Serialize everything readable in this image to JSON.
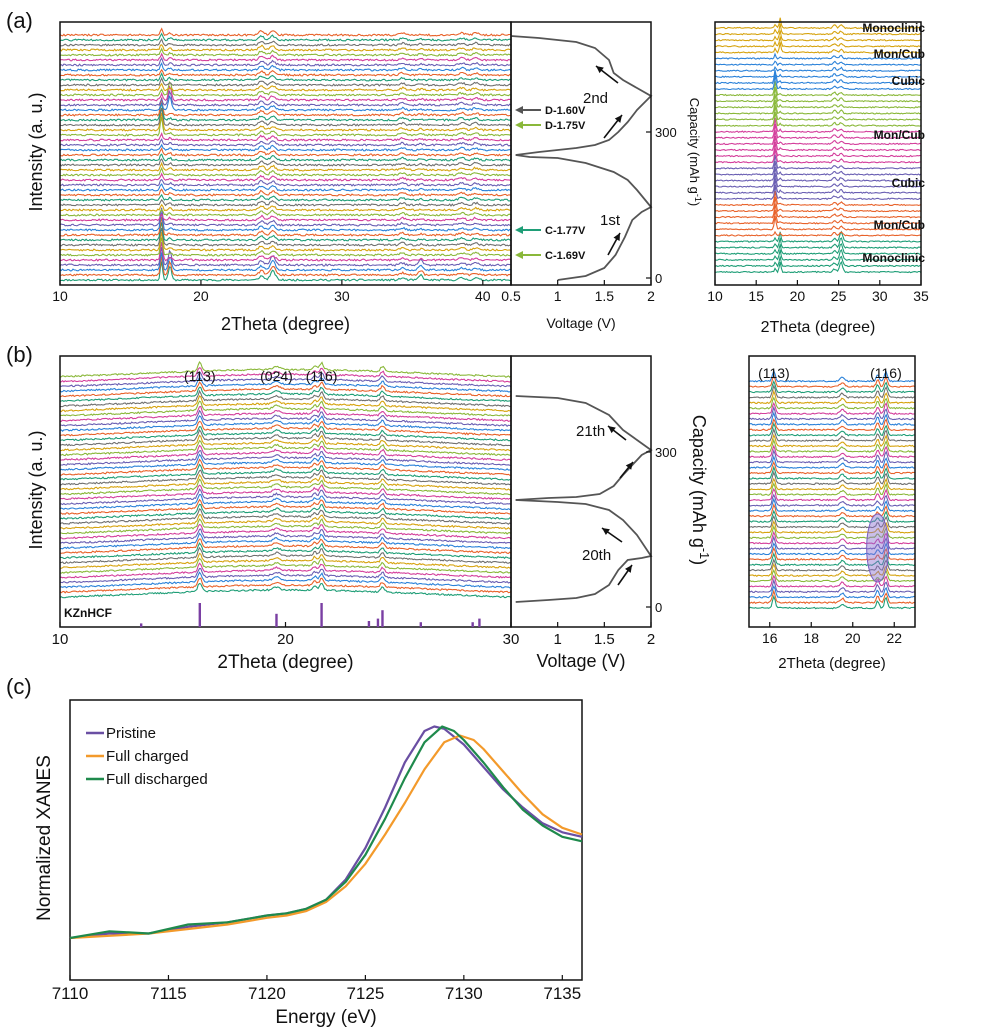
{
  "colors": {
    "pattern": [
      "#1f9e77",
      "#e8622a",
      "#2b82d9",
      "#6a5fb3",
      "#d43f9c",
      "#8ab83a",
      "#d6a30f",
      "#707070"
    ],
    "pristine": "#6a4fa3",
    "charged": "#f39a2b",
    "discharged": "#1f8a4c",
    "gcd": "#555555",
    "ref": "#7a3fa3"
  },
  "panels": {
    "a": {
      "label": "(a)"
    },
    "b": {
      "label": "(b)"
    },
    "c": {
      "label": "(c)"
    }
  },
  "chart_data": [
    {
      "id": "a-xrd",
      "type": "line",
      "ylabel": "Intensity (a. u.)",
      "xlabel": "2Theta (degree)",
      "xlim": [
        10,
        42
      ],
      "xticks": [
        10,
        20,
        30,
        40
      ],
      "traces": 50,
      "peaks_2theta": [
        17.2,
        17.8,
        24.3,
        25.1,
        34.3,
        35.6,
        38.5,
        39.5
      ],
      "annotations": [
        {
          "text": "D-1.60V",
          "trace": 34,
          "color": "#555555"
        },
        {
          "text": "D-1.75V",
          "trace": 31,
          "color": "#8ab83a"
        },
        {
          "text": "C-1.77V",
          "trace": 10,
          "color": "#1f9e77"
        },
        {
          "text": "C-1.69V",
          "trace": 5,
          "color": "#8ab83a"
        }
      ]
    },
    {
      "id": "a-gcd",
      "type": "line",
      "xlabel": "Voltage (V)",
      "ylabel": "Capacity (mAh g-1)",
      "xlim": [
        0.5,
        2.0
      ],
      "xticks": [
        0.5,
        1.0,
        1.5,
        2.0
      ],
      "yticks": [
        0,
        300
      ],
      "cycles": [
        {
          "label": "1st"
        },
        {
          "label": "2nd"
        }
      ]
    },
    {
      "id": "a-xrd-zoom",
      "type": "line",
      "ylabel": "Capacity (mAh g-1)",
      "xlabel": "2Theta (degree)",
      "xlim": [
        10,
        35
      ],
      "xticks": [
        10,
        15,
        20,
        25,
        30,
        35
      ],
      "phase_labels": [
        "Monoclinic",
        "Mon/Cub",
        "Cubic",
        "Mon/Cub",
        "Cubic",
        "Mon/Cub",
        "Monoclinic"
      ],
      "color_groups_bottom_to_top": [
        "#1f9e77",
        "#e8622a",
        "#6a5fb3",
        "#d43f9c",
        "#8ab83a",
        "#2b82d9",
        "#d6a30f"
      ]
    },
    {
      "id": "b-xrd",
      "type": "line",
      "ylabel": "Intensity (a. u.)",
      "xlabel": "2Theta (degree)",
      "xlim": [
        10,
        30
      ],
      "xticks": [
        10,
        20,
        30
      ],
      "traces": 46,
      "peaks": [
        {
          "label": "(113)",
          "two_theta": 16.2
        },
        {
          "label": "(024)",
          "two_theta": 19.6
        },
        {
          "label": "(116)",
          "two_theta": 21.6
        }
      ],
      "other_peaks_2theta": [
        24.3
      ],
      "reference": {
        "label": "KZnHCF",
        "sticks": [
          {
            "x": 13.6,
            "h": 0.15
          },
          {
            "x": 16.2,
            "h": 1.0
          },
          {
            "x": 19.6,
            "h": 0.55
          },
          {
            "x": 21.6,
            "h": 1.0
          },
          {
            "x": 23.7,
            "h": 0.25
          },
          {
            "x": 24.1,
            "h": 0.35
          },
          {
            "x": 24.3,
            "h": 0.7
          },
          {
            "x": 26.0,
            "h": 0.2
          },
          {
            "x": 28.3,
            "h": 0.2
          },
          {
            "x": 28.6,
            "h": 0.35
          }
        ]
      }
    },
    {
      "id": "b-gcd",
      "type": "line",
      "xlabel": "Voltage (V)",
      "ylabel": "Capacity (mAh g-1)",
      "xlim": [
        0.5,
        2.0
      ],
      "xticks": [
        1.0,
        1.5,
        2.0
      ],
      "yticks": [
        0,
        300
      ],
      "cycles": [
        {
          "label": "20th"
        },
        {
          "label": "21th"
        }
      ]
    },
    {
      "id": "b-xrd-zoom",
      "type": "line",
      "xlabel": "2Theta (degree)",
      "xlim": [
        15,
        23
      ],
      "xticks": [
        16,
        18,
        20,
        22
      ],
      "peaks": [
        {
          "label": "(113)",
          "two_theta": 16.2
        },
        {
          "label": "(116)",
          "two_theta": 21.6
        }
      ],
      "highlight": {
        "two_theta": 21.2
      }
    },
    {
      "id": "c-xanes",
      "type": "line",
      "xlabel": "Energy (eV)",
      "ylabel": "Normalized XANES",
      "xlim": [
        7110,
        7136
      ],
      "xticks": [
        7110,
        7115,
        7120,
        7125,
        7130,
        7135
      ],
      "series": [
        {
          "name": "Pristine",
          "color": "#6a4fa3",
          "x": [
            7110,
            7112,
            7114,
            7116,
            7118,
            7120,
            7121,
            7122,
            7123,
            7124,
            7125,
            7126,
            7127,
            7128,
            7128.5,
            7129,
            7130,
            7131,
            7132,
            7133,
            7134,
            7135,
            7136
          ],
          "y": [
            0.0,
            0.02,
            0.02,
            0.05,
            0.07,
            0.1,
            0.11,
            0.13,
            0.17,
            0.26,
            0.4,
            0.58,
            0.78,
            0.92,
            0.94,
            0.93,
            0.86,
            0.76,
            0.66,
            0.58,
            0.51,
            0.47,
            0.45
          ]
        },
        {
          "name": "Full charged",
          "color": "#f39a2b",
          "x": [
            7110,
            7112,
            7114,
            7116,
            7118,
            7120,
            7121,
            7122,
            7123,
            7124,
            7125,
            7126,
            7127,
            7128,
            7129,
            7129.8,
            7130.5,
            7131,
            7132,
            7133,
            7134,
            7135,
            7136
          ],
          "y": [
            0.0,
            0.01,
            0.02,
            0.04,
            0.06,
            0.09,
            0.1,
            0.12,
            0.16,
            0.23,
            0.33,
            0.46,
            0.6,
            0.75,
            0.87,
            0.9,
            0.88,
            0.84,
            0.74,
            0.64,
            0.55,
            0.49,
            0.46
          ]
        },
        {
          "name": "Full discharged",
          "color": "#1f8a4c",
          "x": [
            7110,
            7112,
            7114,
            7116,
            7118,
            7120,
            7121,
            7122,
            7123,
            7124,
            7125,
            7126,
            7127,
            7128,
            7128.9,
            7129.5,
            7130,
            7131,
            7132,
            7133,
            7134,
            7135,
            7136
          ],
          "y": [
            0.0,
            0.03,
            0.02,
            0.06,
            0.07,
            0.1,
            0.11,
            0.13,
            0.17,
            0.25,
            0.37,
            0.53,
            0.71,
            0.87,
            0.94,
            0.92,
            0.88,
            0.78,
            0.67,
            0.57,
            0.5,
            0.45,
            0.43
          ]
        }
      ]
    }
  ]
}
